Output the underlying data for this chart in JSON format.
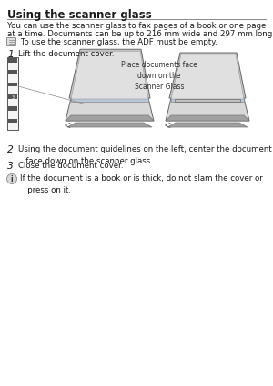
{
  "title": "Using the scanner glass",
  "bg_color": "#ffffff",
  "text_color": "#1a1a1a",
  "title_fontsize": 8.5,
  "body_fontsize": 6.2,
  "small_fontsize": 5.5,
  "body_text1": "You can use the scanner glass to fax pages of a book or one page",
  "body_text2": "at a time. Documents can be up to 216 mm wide and 297 mm long.",
  "note_text": " To use the scanner glass, the ADF must be empty.",
  "step1_label": "1",
  "step1_text": "Lift the document cover.",
  "step2_label": "2",
  "step2_text": "Using the document guidelines on the left, center the document\n   face down on the scanner glass.",
  "step3_label": "3",
  "step3_text": "Close the document cover.",
  "warning_text": "If the document is a book or is thick, do not slam the cover or\n   press on it.",
  "callout_text": "Place documents face\ndown on the\nScanner Glass",
  "line_color": "#888888",
  "ruler_color": "#444444",
  "scanner_body": "#d8d8d8",
  "scanner_dark": "#a0a0a0",
  "scanner_light": "#ececec",
  "paper_color": "#f0f0f0",
  "lid_color": "#c8c8c8"
}
